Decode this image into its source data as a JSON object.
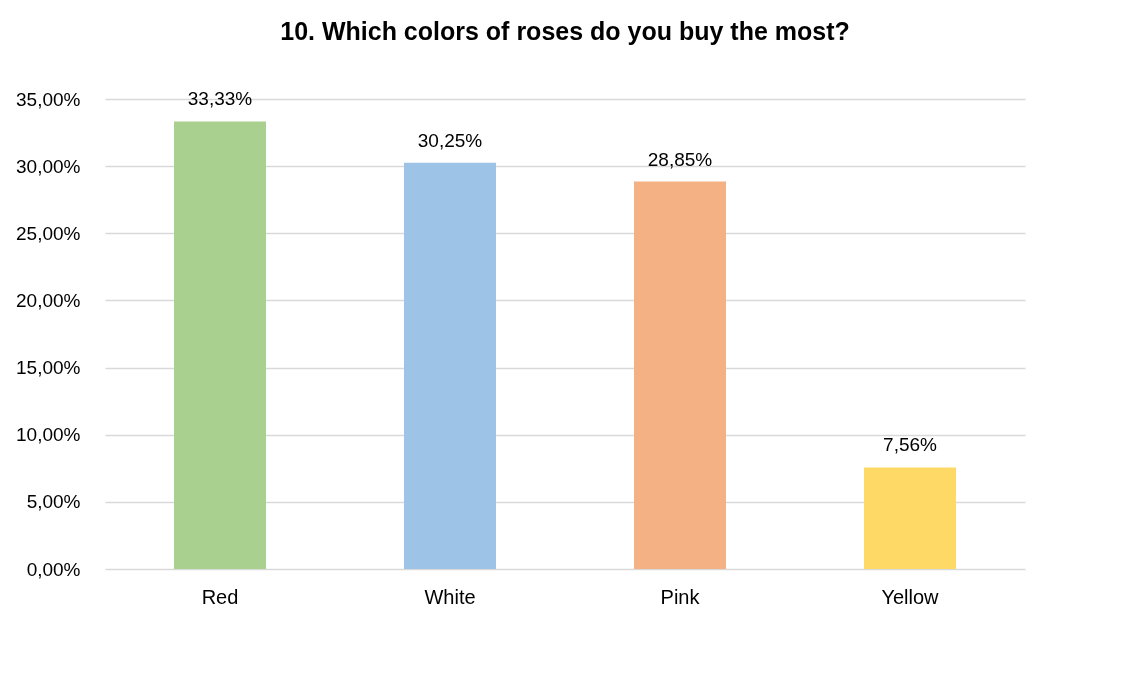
{
  "chart_data": {
    "type": "bar",
    "title": "10. Which colors of roses do you buy the most?",
    "categories": [
      "Red",
      "White",
      "Pink",
      "Yellow"
    ],
    "values": [
      33.33,
      30.25,
      28.85,
      7.56
    ],
    "value_labels": [
      "33,33%",
      "30,25%",
      "28,85%",
      "7,56%"
    ],
    "colors": [
      "#a9d08e",
      "#9dc3e6",
      "#f4b183",
      "#ffd966"
    ],
    "ylim": [
      0,
      35
    ],
    "yticks": [
      {
        "value": 0,
        "label": "0,00%"
      },
      {
        "value": 5,
        "label": "5,00%"
      },
      {
        "value": 10,
        "label": "10,00%"
      },
      {
        "value": 15,
        "label": "15,00%"
      },
      {
        "value": 20,
        "label": "20,00%"
      },
      {
        "value": 25,
        "label": "25,00%"
      },
      {
        "value": 30,
        "label": "30,00%"
      },
      {
        "value": 35,
        "label": "35,00%"
      }
    ],
    "grid": "y"
  }
}
